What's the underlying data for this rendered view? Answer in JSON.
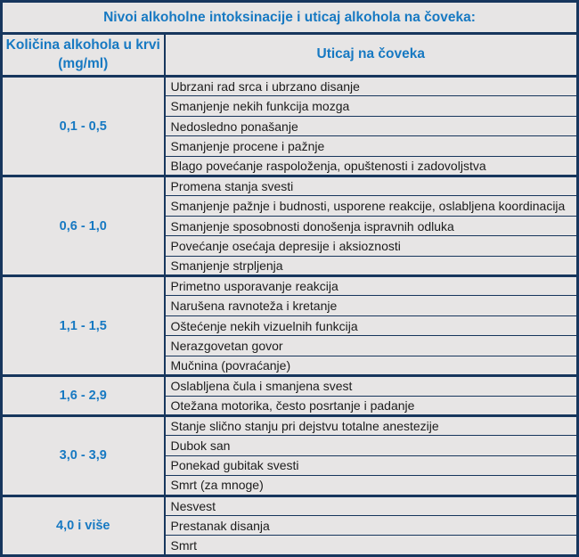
{
  "table": {
    "title": "Nivoi alkoholne intoksinacije i uticaj alkohola na čoveka:",
    "columns": {
      "range_header_line1": "Količina alkohola u krvi",
      "range_header_line2": "(mg/ml)",
      "effects_header": "Uticaj na čoveka"
    },
    "groups": [
      {
        "range": "0,1 - 0,5",
        "effects": [
          "Ubrzani rad srca i ubrzano disanje",
          "Smanjenje nekih funkcija mozga",
          "Nedosledno ponašanje",
          "Smanjenje procene i pažnje",
          "Blago povećanje raspoloženja, opuštenosti i zadovoljstva"
        ]
      },
      {
        "range": "0,6 - 1,0",
        "effects": [
          "Promena stanja svesti",
          "Smanjenje pažnje i budnosti, usporene reakcije, oslabljena koordinacija",
          "Smanjenje sposobnosti donošenja ispravnih odluka",
          "Povećanje osećaja depresije i aksioznosti",
          "Smanjenje strpljenja"
        ]
      },
      {
        "range": "1,1 - 1,5",
        "effects": [
          "Primetno usporavanje reakcija",
          "Narušena ravnoteža i kretanje",
          "Oštećenje nekih vizuelnih funkcija",
          "Nerazgovetan govor",
          "Mučnina (povraćanje)"
        ]
      },
      {
        "range": "1,6 - 2,9",
        "effects": [
          "Oslabljena čula i smanjena svest",
          "Otežana motorika, često posrtanje i padanje"
        ]
      },
      {
        "range": "3,0 - 3,9",
        "effects": [
          "Stanje slično stanju pri dejstvu totalne anestezije",
          "Dubok san",
          "Ponekad gubitak svesti",
          "Smrt (za mnoge)"
        ]
      },
      {
        "range": "4,0 i više",
        "effects": [
          "Nesvest",
          "Prestanak disanja",
          "Smrt"
        ]
      }
    ],
    "colors": {
      "border": "#17365d",
      "heading_text": "#1779c2",
      "cell_bg": "#e7e5e5",
      "body_text": "#1c1c1c"
    }
  }
}
